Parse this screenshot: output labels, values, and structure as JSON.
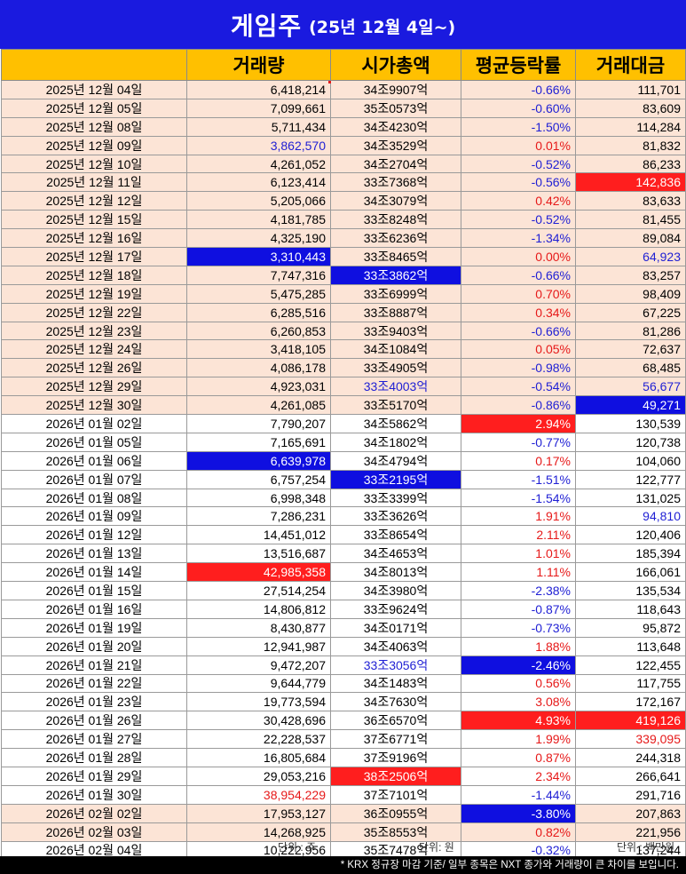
{
  "title": {
    "main": "게임주",
    "sub": "(25년 12월 4일~)"
  },
  "headers": [
    "",
    "거래량",
    "시가총액",
    "평균등락률",
    "거래대금"
  ],
  "colors": {
    "title_bg": "#1a1adf",
    "header_bg": "#ffc000",
    "highlight_blue": "#0f0fe0",
    "highlight_red": "#ff1e1e",
    "row_tint": "#fce4d6"
  },
  "rows": [
    {
      "date": "2025년 12월 04일",
      "volume": "6,418,214",
      "cap": "34조9907억",
      "change": "-0.66%",
      "amount": "111,701",
      "group": "dec"
    },
    {
      "date": "2025년 12월 05일",
      "volume": "7,099,661",
      "cap": "35조0573억",
      "change": "-0.60%",
      "amount": "83,609",
      "group": "dec"
    },
    {
      "date": "2025년 12월 08일",
      "volume": "5,711,434",
      "cap": "34조4230억",
      "change": "-1.50%",
      "amount": "114,284",
      "group": "dec"
    },
    {
      "date": "2025년 12월 09일",
      "volume": "3,862,570",
      "cap": "34조3529억",
      "change": "0.01%",
      "amount": "81,832",
      "group": "dec",
      "hl": {
        "volume": "blue-txt"
      }
    },
    {
      "date": "2025년 12월 10일",
      "volume": "4,261,052",
      "cap": "34조2704억",
      "change": "-0.52%",
      "amount": "86,233",
      "group": "dec"
    },
    {
      "date": "2025년 12월 11일",
      "volume": "6,123,414",
      "cap": "33조7368억",
      "change": "-0.56%",
      "amount": "142,836",
      "group": "dec",
      "hl": {
        "amount": "hl-red"
      }
    },
    {
      "date": "2025년 12월 12일",
      "volume": "5,205,066",
      "cap": "34조3079억",
      "change": "0.42%",
      "amount": "83,633",
      "group": "dec"
    },
    {
      "date": "2025년 12월 15일",
      "volume": "4,181,785",
      "cap": "33조8248억",
      "change": "-0.52%",
      "amount": "81,455",
      "group": "dec"
    },
    {
      "date": "2025년 12월 16일",
      "volume": "4,325,190",
      "cap": "33조6236억",
      "change": "-1.34%",
      "amount": "89,084",
      "group": "dec"
    },
    {
      "date": "2025년 12월 17일",
      "volume": "3,310,443",
      "cap": "33조8465억",
      "change": "0.00%",
      "amount": "64,923",
      "group": "dec",
      "hl": {
        "volume": "hl-blue",
        "amount": "blue-txt"
      }
    },
    {
      "date": "2025년 12월 18일",
      "volume": "7,747,316",
      "cap": "33조3862억",
      "change": "-0.66%",
      "amount": "83,257",
      "group": "dec",
      "hl": {
        "cap": "hl-blue"
      }
    },
    {
      "date": "2025년 12월 19일",
      "volume": "5,475,285",
      "cap": "33조6999억",
      "change": "0.70%",
      "amount": "98,409",
      "group": "dec"
    },
    {
      "date": "2025년 12월 22일",
      "volume": "6,285,516",
      "cap": "33조8887억",
      "change": "0.34%",
      "amount": "67,225",
      "group": "dec"
    },
    {
      "date": "2025년 12월 23일",
      "volume": "6,260,853",
      "cap": "33조9403억",
      "change": "-0.66%",
      "amount": "81,286",
      "group": "dec"
    },
    {
      "date": "2025년 12월 24일",
      "volume": "3,418,105",
      "cap": "34조1084억",
      "change": "0.05%",
      "amount": "72,637",
      "group": "dec"
    },
    {
      "date": "2025년 12월 26일",
      "volume": "4,086,178",
      "cap": "33조4905억",
      "change": "-0.98%",
      "amount": "68,485",
      "group": "dec"
    },
    {
      "date": "2025년 12월 29일",
      "volume": "4,923,031",
      "cap": "33조4003억",
      "change": "-0.54%",
      "amount": "56,677",
      "group": "dec",
      "hl": {
        "cap": "blue-txt",
        "amount": "blue-txt"
      }
    },
    {
      "date": "2025년 12월 30일",
      "volume": "4,261,085",
      "cap": "33조5170억",
      "change": "-0.86%",
      "amount": "49,271",
      "group": "dec",
      "hl": {
        "amount": "hl-blue"
      }
    },
    {
      "date": "2026년 01월 02일",
      "volume": "7,790,207",
      "cap": "34조5862억",
      "change": "2.94%",
      "amount": "130,539",
      "group": "jan",
      "hl": {
        "change": "hl-red"
      }
    },
    {
      "date": "2026년 01월 05일",
      "volume": "7,165,691",
      "cap": "34조1802억",
      "change": "-0.77%",
      "amount": "120,738",
      "group": "jan"
    },
    {
      "date": "2026년 01월 06일",
      "volume": "6,639,978",
      "cap": "34조4794억",
      "change": "0.17%",
      "amount": "104,060",
      "group": "jan",
      "hl": {
        "volume": "hl-blue"
      }
    },
    {
      "date": "2026년 01월 07일",
      "volume": "6,757,254",
      "cap": "33조2195억",
      "change": "-1.51%",
      "amount": "122,777",
      "group": "jan",
      "hl": {
        "cap": "hl-blue"
      }
    },
    {
      "date": "2026년 01월 08일",
      "volume": "6,998,348",
      "cap": "33조3399억",
      "change": "-1.54%",
      "amount": "131,025",
      "group": "jan"
    },
    {
      "date": "2026년 01월 09일",
      "volume": "7,286,231",
      "cap": "33조3626억",
      "change": "1.91%",
      "amount": "94,810",
      "group": "jan",
      "hl": {
        "amount": "blue-txt"
      }
    },
    {
      "date": "2026년 01월 12일",
      "volume": "14,451,012",
      "cap": "33조8654억",
      "change": "2.11%",
      "amount": "120,406",
      "group": "jan"
    },
    {
      "date": "2026년 01월 13일",
      "volume": "13,516,687",
      "cap": "34조4653억",
      "change": "1.01%",
      "amount": "185,394",
      "group": "jan"
    },
    {
      "date": "2026년 01월 14일",
      "volume": "42,985,358",
      "cap": "34조8013억",
      "change": "1.11%",
      "amount": "166,061",
      "group": "jan",
      "hl": {
        "volume": "hl-red"
      }
    },
    {
      "date": "2026년 01월 15일",
      "volume": "27,514,254",
      "cap": "34조3980억",
      "change": "-2.38%",
      "amount": "135,534",
      "group": "jan"
    },
    {
      "date": "2026년 01월 16일",
      "volume": "14,806,812",
      "cap": "33조9624억",
      "change": "-0.87%",
      "amount": "118,643",
      "group": "jan"
    },
    {
      "date": "2026년 01월 19일",
      "volume": "8,430,877",
      "cap": "34조0171억",
      "change": "-0.73%",
      "amount": "95,872",
      "group": "jan"
    },
    {
      "date": "2026년 01월 20일",
      "volume": "12,941,987",
      "cap": "34조4063억",
      "change": "1.88%",
      "amount": "113,648",
      "group": "jan"
    },
    {
      "date": "2026년 01월 21일",
      "volume": "9,472,207",
      "cap": "33조3056억",
      "change": "-2.46%",
      "amount": "122,455",
      "group": "jan",
      "hl": {
        "cap": "blue-txt",
        "change": "hl-blue"
      }
    },
    {
      "date": "2026년 01월 22일",
      "volume": "9,644,779",
      "cap": "34조1483억",
      "change": "0.56%",
      "amount": "117,755",
      "group": "jan"
    },
    {
      "date": "2026년 01월 23일",
      "volume": "19,773,594",
      "cap": "34조7630억",
      "change": "3.08%",
      "amount": "172,167",
      "group": "jan"
    },
    {
      "date": "2026년 01월 26일",
      "volume": "30,428,696",
      "cap": "36조6570억",
      "change": "4.93%",
      "amount": "419,126",
      "group": "jan",
      "hl": {
        "change": "hl-red",
        "amount": "hl-red"
      }
    },
    {
      "date": "2026년 01월 27일",
      "volume": "22,228,537",
      "cap": "37조6771억",
      "change": "1.99%",
      "amount": "339,095",
      "group": "jan",
      "hl": {
        "amount": "red-txt"
      }
    },
    {
      "date": "2026년 01월 28일",
      "volume": "16,805,684",
      "cap": "37조9196억",
      "change": "0.87%",
      "amount": "244,318",
      "group": "jan"
    },
    {
      "date": "2026년 01월 29일",
      "volume": "29,053,216",
      "cap": "38조2506억",
      "change": "2.34%",
      "amount": "266,641",
      "group": "jan",
      "hl": {
        "cap": "hl-red"
      }
    },
    {
      "date": "2026년 01월 30일",
      "volume": "38,954,229",
      "cap": "37조7101억",
      "change": "-1.44%",
      "amount": "291,716",
      "group": "jan",
      "hl": {
        "volume": "red-txt"
      }
    },
    {
      "date": "2026년 02월 02일",
      "volume": "17,953,127",
      "cap": "36조0955억",
      "change": "-3.80%",
      "amount": "207,863",
      "group": "feb",
      "hl": {
        "change": "hl-blue"
      }
    },
    {
      "date": "2026년 02월 03일",
      "volume": "14,268,925",
      "cap": "35조8553억",
      "change": "0.82%",
      "amount": "221,956",
      "group": "feb"
    },
    {
      "date": "2026년 02월 04일",
      "volume": "10,222,956",
      "cap": "35조7478억",
      "change": "-0.32%",
      "amount": "137,244",
      "group": "jan",
      "last": true
    }
  ],
  "units": {
    "volume": "단위 : 주",
    "cap": "단위: 원",
    "amount": "단위 : 백만원"
  },
  "footnote": "* KRX 정규장 마감 기준/ 일부 종목은 NXT 종가와 거래량이 큰 차이를 보입니다."
}
